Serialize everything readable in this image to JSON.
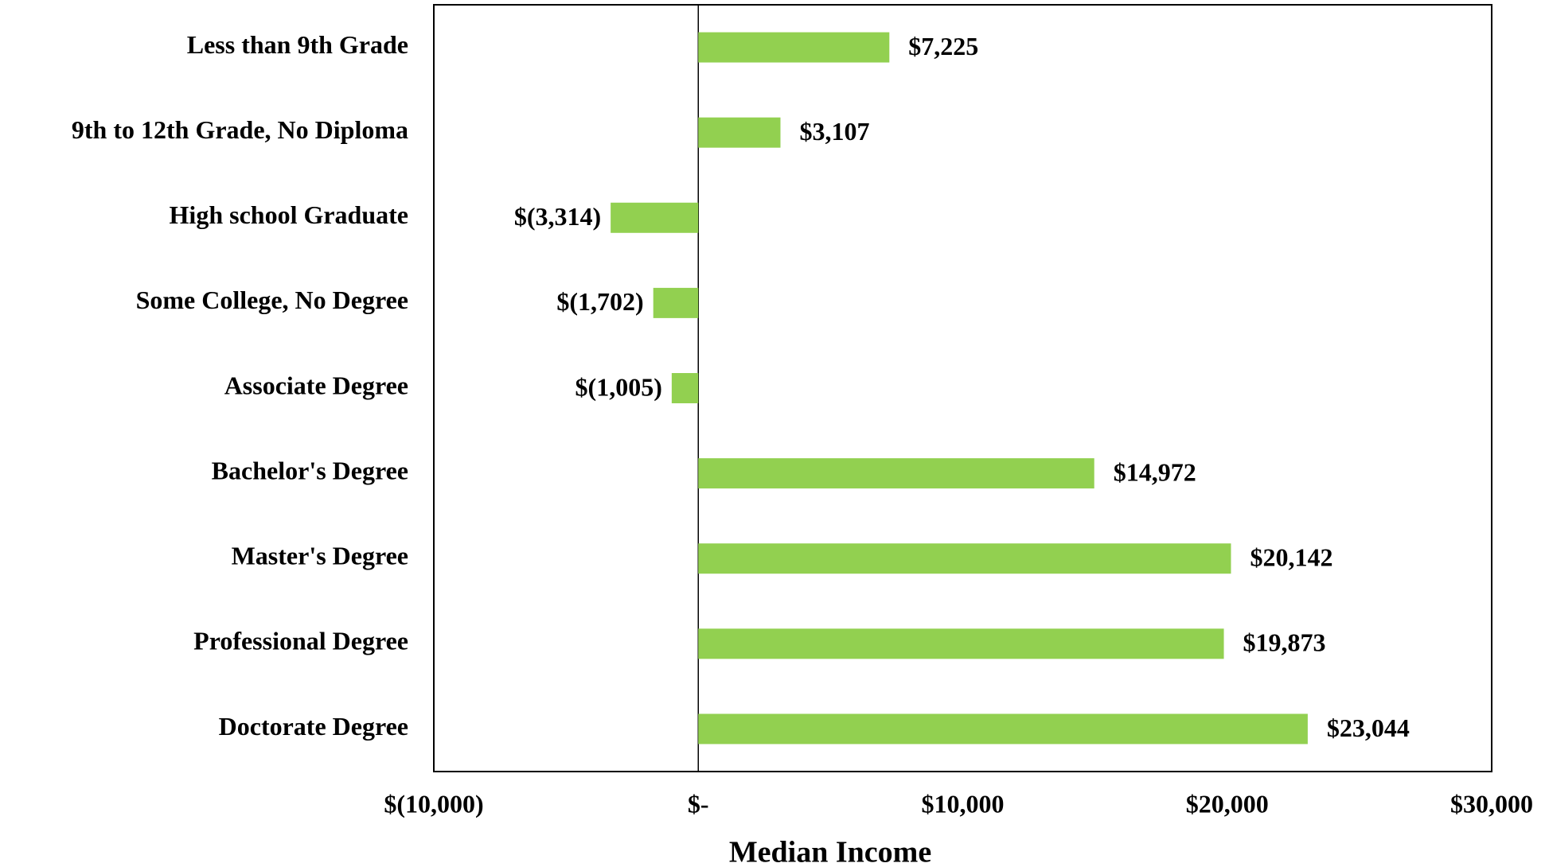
{
  "chart_data": {
    "type": "hbar",
    "x_label": "Median Income",
    "categories": [
      "Less than 9th Grade",
      "9th to 12th Grade, No Diploma",
      "High school Graduate",
      "Some College, No Degree",
      "Associate Degree",
      "Bachelor's Degree",
      "Master's Degree",
      "Professional Degree",
      "Doctorate Degree"
    ],
    "values": [
      7225,
      3107,
      -3314,
      -1702,
      -1005,
      14972,
      20142,
      19873,
      23044
    ],
    "value_labels": [
      "$7,225",
      "$3,107",
      "$(3,314)",
      "$(1,702)",
      "$(1,005)",
      "$14,972",
      "$20,142",
      "$19,873",
      "$23,044"
    ],
    "color": "#92d050",
    "xlim": [
      -10000,
      30000
    ],
    "xticks": [
      {
        "value": -10000,
        "label": "$(10,000)"
      },
      {
        "value": 0,
        "label": "$-"
      },
      {
        "value": 10000,
        "label": "$10,000"
      },
      {
        "value": 20000,
        "label": "$20,000"
      },
      {
        "value": 30000,
        "label": "$30,000"
      }
    ]
  }
}
